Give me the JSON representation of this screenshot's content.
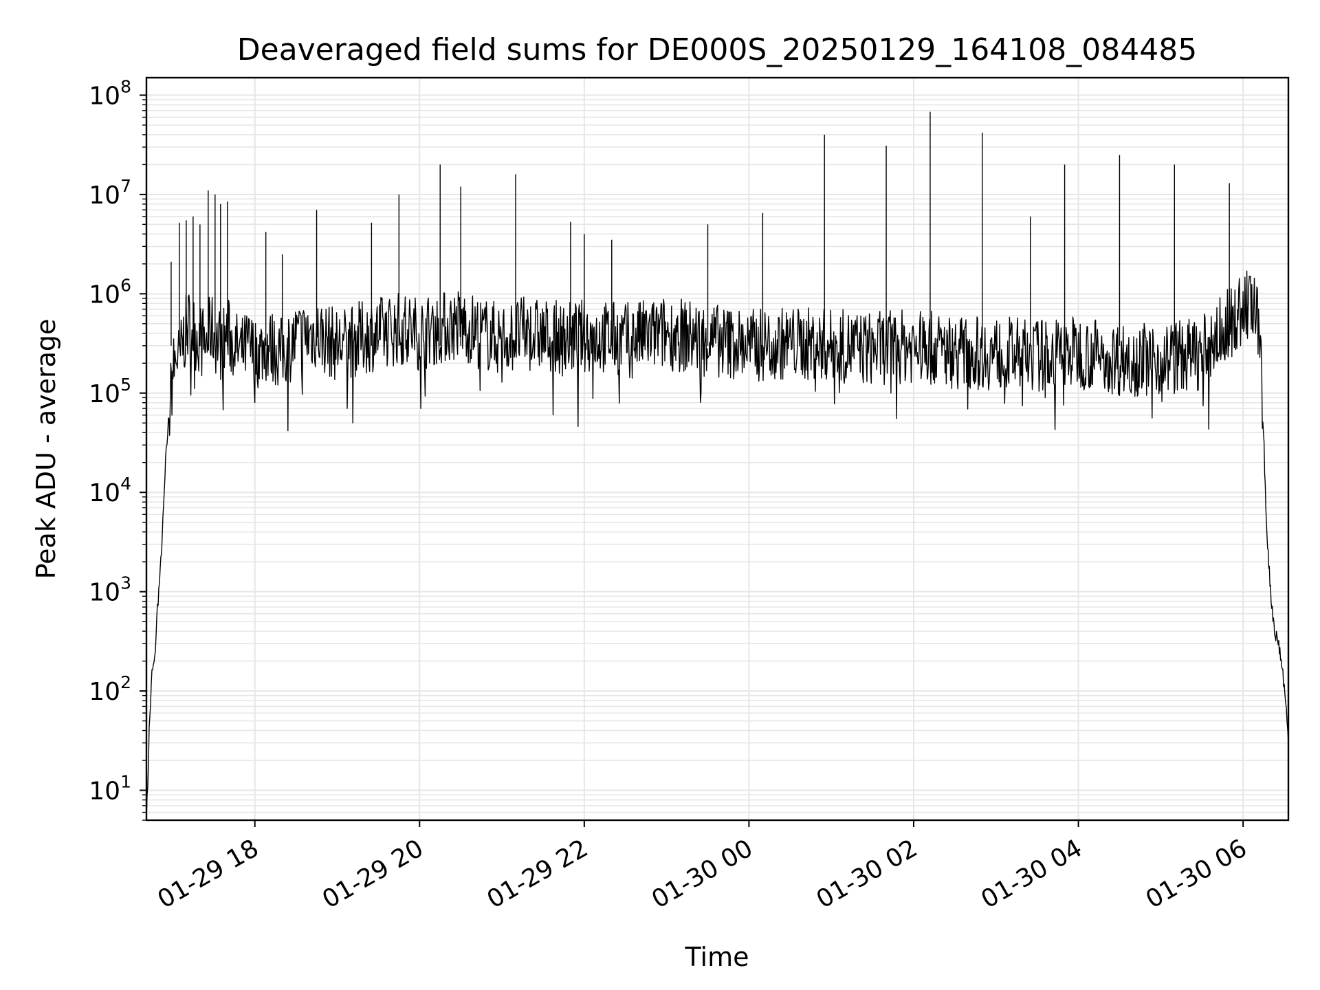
{
  "chart_data": {
    "type": "line",
    "title": "Deaveraged field sums for DE000S_20250129_164108_084485",
    "xlabel": "Time",
    "ylabel": "Peak ADU - average",
    "yscale": "log",
    "ylim": [
      5,
      150000000
    ],
    "xlim": [
      "2025-01-29 16:41",
      "2025-01-30 06:33"
    ],
    "grid": true,
    "legend": "none",
    "line_color": "#000000",
    "x_ticks": [
      {
        "t": "2025-01-29 18:00",
        "label": "01-29 18"
      },
      {
        "t": "2025-01-29 20:00",
        "label": "01-29 20"
      },
      {
        "t": "2025-01-29 22:00",
        "label": "01-29 22"
      },
      {
        "t": "2025-01-30 00:00",
        "label": "01-30 00"
      },
      {
        "t": "2025-01-30 02:00",
        "label": "01-30 02"
      },
      {
        "t": "2025-01-30 04:00",
        "label": "01-30 04"
      },
      {
        "t": "2025-01-30 06:00",
        "label": "01-30 06"
      }
    ],
    "y_ticks": [
      {
        "value": 10,
        "base": "10",
        "exp": "1"
      },
      {
        "value": 100,
        "base": "10",
        "exp": "2"
      },
      {
        "value": 1000,
        "base": "10",
        "exp": "3"
      },
      {
        "value": 10000,
        "base": "10",
        "exp": "4"
      },
      {
        "value": 100000,
        "base": "10",
        "exp": "5"
      },
      {
        "value": 1000000,
        "base": "10",
        "exp": "6"
      },
      {
        "value": 10000000,
        "base": "10",
        "exp": "7"
      },
      {
        "value": 100000000,
        "base": "10",
        "exp": "8"
      }
    ],
    "series": [
      {
        "x": [
          "2025-01-29 16:41",
          "2025-01-29 16:42",
          "2025-01-29 16:43",
          "2025-01-29 16:45",
          "2025-01-29 16:47",
          "2025-01-29 16:49",
          "2025-01-29 16:51",
          "2025-01-29 16:53",
          "2025-01-29 16:55",
          "2025-01-29 16:57",
          "2025-01-29 17:00",
          "2025-01-29 17:03",
          "2025-01-29 17:05",
          "2025-01-29 17:08",
          "2025-01-29 17:12",
          "2025-01-29 17:16",
          "2025-01-29 17:20",
          "2025-01-29 17:24",
          "2025-01-29 17:28",
          "2025-01-29 17:32",
          "2025-01-29 17:36",
          "2025-01-29 17:40",
          "2025-01-29 17:45",
          "2025-01-29 17:50",
          "2025-01-29 17:55",
          "2025-01-29 18:00",
          "2025-01-29 18:10",
          "2025-01-29 18:20",
          "2025-01-29 18:30",
          "2025-01-29 18:45",
          "2025-01-29 19:00",
          "2025-01-29 19:15",
          "2025-01-29 19:30",
          "2025-01-29 19:45",
          "2025-01-29 20:00",
          "2025-01-29 20:15",
          "2025-01-29 20:30",
          "2025-01-29 20:45",
          "2025-01-29 21:00",
          "2025-01-29 21:15",
          "2025-01-29 21:30",
          "2025-01-29 21:45",
          "2025-01-29 22:00",
          "2025-01-29 22:30",
          "2025-01-29 23:00",
          "2025-01-29 23:30",
          "2025-01-30 00:00",
          "2025-01-30 00:30",
          "2025-01-30 01:00",
          "2025-01-30 01:30",
          "2025-01-30 02:00",
          "2025-01-30 02:30",
          "2025-01-30 03:00",
          "2025-01-30 03:30",
          "2025-01-30 04:00",
          "2025-01-30 04:30",
          "2025-01-30 05:00",
          "2025-01-30 05:30",
          "2025-01-30 05:50",
          "2025-01-30 06:00",
          "2025-01-30 06:05",
          "2025-01-30 06:10",
          "2025-01-30 06:14",
          "2025-01-30 06:17",
          "2025-01-30 06:20",
          "2025-01-30 06:23",
          "2025-01-30 06:26",
          "2025-01-30 06:29",
          "2025-01-30 06:31",
          "2025-01-30 06:33"
        ],
        "y": [
          5,
          12,
          40,
          150,
          200,
          700,
          1500,
          5000,
          20000,
          50000,
          150000,
          250000,
          200000,
          350000,
          500000,
          400000,
          350000,
          300000,
          450000,
          350000,
          300000,
          400000,
          300000,
          250000,
          300000,
          250000,
          300000,
          250000,
          350000,
          400000,
          300000,
          350000,
          400000,
          450000,
          400000,
          450000,
          500000,
          400000,
          350000,
          400000,
          380000,
          350000,
          380000,
          350000,
          400000,
          350000,
          300000,
          320000,
          300000,
          280000,
          300000,
          260000,
          250000,
          240000,
          260000,
          220000,
          220000,
          250000,
          500000,
          700000,
          800000,
          600000,
          100000,
          5000,
          1000,
          400,
          300,
          150,
          80,
          30
        ]
      }
    ],
    "spikes": [
      {
        "t": "2025-01-29 16:59",
        "value": 2100000
      },
      {
        "t": "2025-01-29 17:05",
        "value": 5200000
      },
      {
        "t": "2025-01-29 17:10",
        "value": 5500000
      },
      {
        "t": "2025-01-29 17:15",
        "value": 6000000
      },
      {
        "t": "2025-01-29 17:20",
        "value": 5000000
      },
      {
        "t": "2025-01-29 17:26",
        "value": 11000000
      },
      {
        "t": "2025-01-29 17:31",
        "value": 10000000
      },
      {
        "t": "2025-01-29 17:35",
        "value": 8000000
      },
      {
        "t": "2025-01-29 17:40",
        "value": 8500000
      },
      {
        "t": "2025-01-29 18:08",
        "value": 4200000
      },
      {
        "t": "2025-01-29 18:20",
        "value": 2500000
      },
      {
        "t": "2025-01-29 18:45",
        "value": 7000000
      },
      {
        "t": "2025-01-29 19:25",
        "value": 5200000
      },
      {
        "t": "2025-01-29 19:45",
        "value": 10000000
      },
      {
        "t": "2025-01-29 20:15",
        "value": 20000000
      },
      {
        "t": "2025-01-29 20:30",
        "value": 12000000
      },
      {
        "t": "2025-01-29 21:10",
        "value": 16000000
      },
      {
        "t": "2025-01-29 21:50",
        "value": 5300000
      },
      {
        "t": "2025-01-29 22:00",
        "value": 4000000
      },
      {
        "t": "2025-01-29 22:20",
        "value": 3500000
      },
      {
        "t": "2025-01-29 23:30",
        "value": 5000000
      },
      {
        "t": "2025-01-30 00:10",
        "value": 6500000
      },
      {
        "t": "2025-01-30 00:55",
        "value": 40000000
      },
      {
        "t": "2025-01-30 01:40",
        "value": 31000000
      },
      {
        "t": "2025-01-30 02:12",
        "value": 68000000
      },
      {
        "t": "2025-01-30 02:50",
        "value": 42000000
      },
      {
        "t": "2025-01-30 03:25",
        "value": 6000000
      },
      {
        "t": "2025-01-30 03:50",
        "value": 20000000
      },
      {
        "t": "2025-01-30 04:30",
        "value": 25000000
      },
      {
        "t": "2025-01-30 05:10",
        "value": 20000000
      },
      {
        "t": "2025-01-30 05:50",
        "value": 13000000
      }
    ]
  }
}
